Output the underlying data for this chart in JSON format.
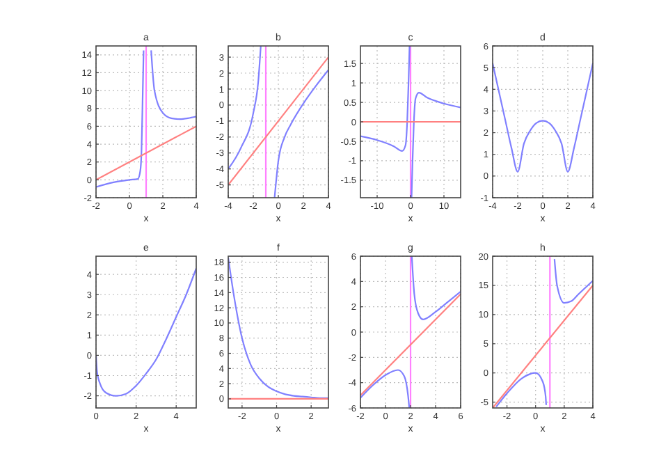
{
  "chart_data": [
    {
      "type": "line",
      "title": "a",
      "xlabel": "x",
      "xlim": [
        -2,
        4
      ],
      "xticks": [
        -2,
        0,
        2,
        4
      ],
      "ylim": [
        -2,
        15
      ],
      "yticks": [
        -2,
        0,
        2,
        4,
        6,
        8,
        10,
        12,
        14
      ],
      "grid": true,
      "series": [
        {
          "color": "#8080ff",
          "x": [
            -2,
            -1,
            0,
            0.5,
            0.65,
            0.72,
            0.8,
            0.85,
            1,
            1.3,
            1.5,
            2,
            2.5,
            3,
            3.5,
            4
          ],
          "values": [
            -0.8,
            -0.3,
            0,
            0.1,
            1,
            3,
            10,
            14.5,
            null,
            14.5,
            10,
            7.5,
            6.9,
            6.8,
            6.9,
            7.1
          ]
        },
        {
          "color": "#ff8080",
          "x": [
            -2,
            4
          ],
          "values": [
            0,
            6
          ]
        }
      ],
      "ref_lines": [
        {
          "axis": "x",
          "value": 1,
          "color": "#ff80ff"
        }
      ]
    },
    {
      "type": "line",
      "title": "b",
      "xlabel": "x",
      "xlim": [
        -4,
        4
      ],
      "xticks": [
        -4,
        -2,
        0,
        2,
        4
      ],
      "ylim": [
        -5.8,
        3.7
      ],
      "yticks": [
        -5,
        -4,
        -3,
        -2,
        -1,
        0,
        1,
        2,
        3
      ],
      "grid": true,
      "series": [
        {
          "color": "#8080ff",
          "x": [
            -4,
            -3,
            -2,
            -1.6,
            -1.4,
            -1,
            -0.3,
            0,
            0.5,
            1,
            2,
            3,
            4
          ],
          "values": [
            -4,
            -2.7,
            -0.5,
            1.5,
            3.7,
            null,
            -5.8,
            -3.5,
            -2,
            -1.2,
            0.1,
            1.2,
            2.2
          ]
        },
        {
          "color": "#ff8080",
          "x": [
            -4,
            4
          ],
          "values": [
            -5,
            3
          ]
        }
      ],
      "ref_lines": [
        {
          "axis": "x",
          "value": -1,
          "color": "#ff80ff"
        }
      ]
    },
    {
      "type": "line",
      "title": "c",
      "xlabel": "x",
      "xlim": [
        -15,
        15
      ],
      "xticks": [
        -10,
        0,
        10
      ],
      "ylim": [
        -1.95,
        1.95
      ],
      "yticks": [
        -1.5,
        -1,
        -0.5,
        0,
        0.5,
        1,
        1.5
      ],
      "grid": true,
      "series": [
        {
          "color": "#8080ff",
          "x": [
            -15,
            -10,
            -5,
            -2.5,
            -1.5,
            -1,
            -0.6,
            -0.3,
            0,
            0.3,
            0.6,
            1,
            1.5,
            2.5,
            5,
            10,
            15
          ],
          "values": [
            -0.37,
            -0.47,
            -0.63,
            -0.75,
            -0.6,
            0,
            1,
            1.95,
            null,
            -1.95,
            -1,
            0,
            0.6,
            0.75,
            0.62,
            0.47,
            0.37
          ]
        },
        {
          "color": "#ff8080",
          "x": [
            -15,
            15
          ],
          "values": [
            0,
            0
          ]
        }
      ],
      "ref_lines": [
        {
          "axis": "x",
          "value": 0,
          "color": "#ff80ff"
        }
      ]
    },
    {
      "type": "line",
      "title": "d",
      "xlabel": "x",
      "xlim": [
        -4,
        4
      ],
      "xticks": [
        -4,
        -2,
        0,
        2,
        4
      ],
      "ylim": [
        -1,
        6
      ],
      "yticks": [
        -1,
        0,
        1,
        2,
        3,
        4,
        5,
        6
      ],
      "grid": true,
      "series": [
        {
          "color": "#8080ff",
          "x": [
            -4,
            -3.5,
            -3,
            -2.5,
            -2,
            -1.5,
            -1,
            -0.5,
            0,
            0.5,
            1,
            1.5,
            2,
            2.5,
            3,
            3.5,
            4
          ],
          "values": [
            5.2,
            3.9,
            2.6,
            1.3,
            0.2,
            1.5,
            2.1,
            2.45,
            2.55,
            2.45,
            2.1,
            1.5,
            0.2,
            1.3,
            2.6,
            3.9,
            5.2
          ]
        }
      ]
    },
    {
      "type": "line",
      "title": "e",
      "xlabel": "x",
      "xlim": [
        0,
        5
      ],
      "xticks": [
        0,
        2,
        4
      ],
      "ylim": [
        -2.6,
        4.9
      ],
      "yticks": [
        -2,
        -1,
        0,
        1,
        2,
        3,
        4
      ],
      "grid": true,
      "series": [
        {
          "color": "#8080ff",
          "x": [
            0,
            0.05,
            0.2,
            0.5,
            1,
            1.5,
            2,
            2.5,
            3,
            3.5,
            4,
            4.5,
            5
          ],
          "values": [
            0,
            -0.8,
            -1.4,
            -1.85,
            -2,
            -1.9,
            -1.5,
            -0.9,
            -0.2,
            0.8,
            1.9,
            3,
            4.3
          ]
        }
      ]
    },
    {
      "type": "line",
      "title": "f",
      "xlabel": "x",
      "xlim": [
        -2.8,
        3
      ],
      "xticks": [
        -2,
        0,
        2
      ],
      "ylim": [
        -1.2,
        18.8
      ],
      "yticks": [
        0,
        2,
        4,
        6,
        8,
        10,
        12,
        14,
        16,
        18
      ],
      "grid": true,
      "series": [
        {
          "color": "#8080ff",
          "x": [
            -2.8,
            -2.5,
            -2,
            -1.5,
            -1,
            -0.5,
            0,
            0.5,
            1,
            1.5,
            2,
            2.5,
            3
          ],
          "values": [
            18.6,
            14,
            8,
            4.5,
            2.7,
            1.6,
            1,
            0.6,
            0.4,
            0.3,
            0.2,
            0.1,
            0.1
          ]
        },
        {
          "color": "#ff8080",
          "x": [
            -2.8,
            3
          ],
          "values": [
            0,
            0
          ]
        }
      ]
    },
    {
      "type": "line",
      "title": "g",
      "xlabel": "x",
      "xlim": [
        -2,
        6
      ],
      "xticks": [
        -2,
        0,
        2,
        4,
        6
      ],
      "ylim": [
        -6,
        6
      ],
      "yticks": [
        -6,
        -4,
        -2,
        0,
        2,
        4,
        6
      ],
      "grid": true,
      "series": [
        {
          "color": "#8080ff",
          "x": [
            -2,
            -1,
            0,
            1,
            1.5,
            1.8,
            1.9,
            2,
            2.1,
            2.3,
            2.6,
            3,
            4,
            5,
            6
          ],
          "values": [
            -5.2,
            -4.2,
            -3.4,
            -3,
            -3.5,
            -5,
            -6,
            null,
            6,
            3,
            1.5,
            1,
            1.6,
            2.4,
            3.2
          ]
        },
        {
          "color": "#ff8080",
          "x": [
            -2,
            6
          ],
          "values": [
            -5,
            3
          ]
        }
      ],
      "ref_lines": [
        {
          "axis": "x",
          "value": 2,
          "color": "#ff80ff"
        }
      ]
    },
    {
      "type": "line",
      "title": "h",
      "xlabel": "x",
      "xlim": [
        -3,
        4
      ],
      "xticks": [
        -2,
        0,
        2,
        4
      ],
      "ylim": [
        -6,
        20
      ],
      "yticks": [
        -5,
        0,
        5,
        10,
        15,
        20
      ],
      "grid": true,
      "series": [
        {
          "color": "#8080ff",
          "x": [
            -2.75,
            -2,
            -1,
            0,
            0.5,
            0.7,
            0.74,
            1,
            1.32,
            1.5,
            2,
            2.5,
            3,
            4
          ],
          "values": [
            -5.8,
            -3.5,
            -1,
            0,
            -1.5,
            -4,
            -5.5,
            null,
            19.5,
            15,
            12,
            12.3,
            13.5,
            15.8
          ]
        },
        {
          "color": "#ff8080",
          "x": [
            -3,
            4
          ],
          "values": [
            -6,
            15
          ]
        }
      ],
      "ref_lines": [
        {
          "axis": "x",
          "value": 1,
          "color": "#ff80ff"
        }
      ]
    }
  ]
}
